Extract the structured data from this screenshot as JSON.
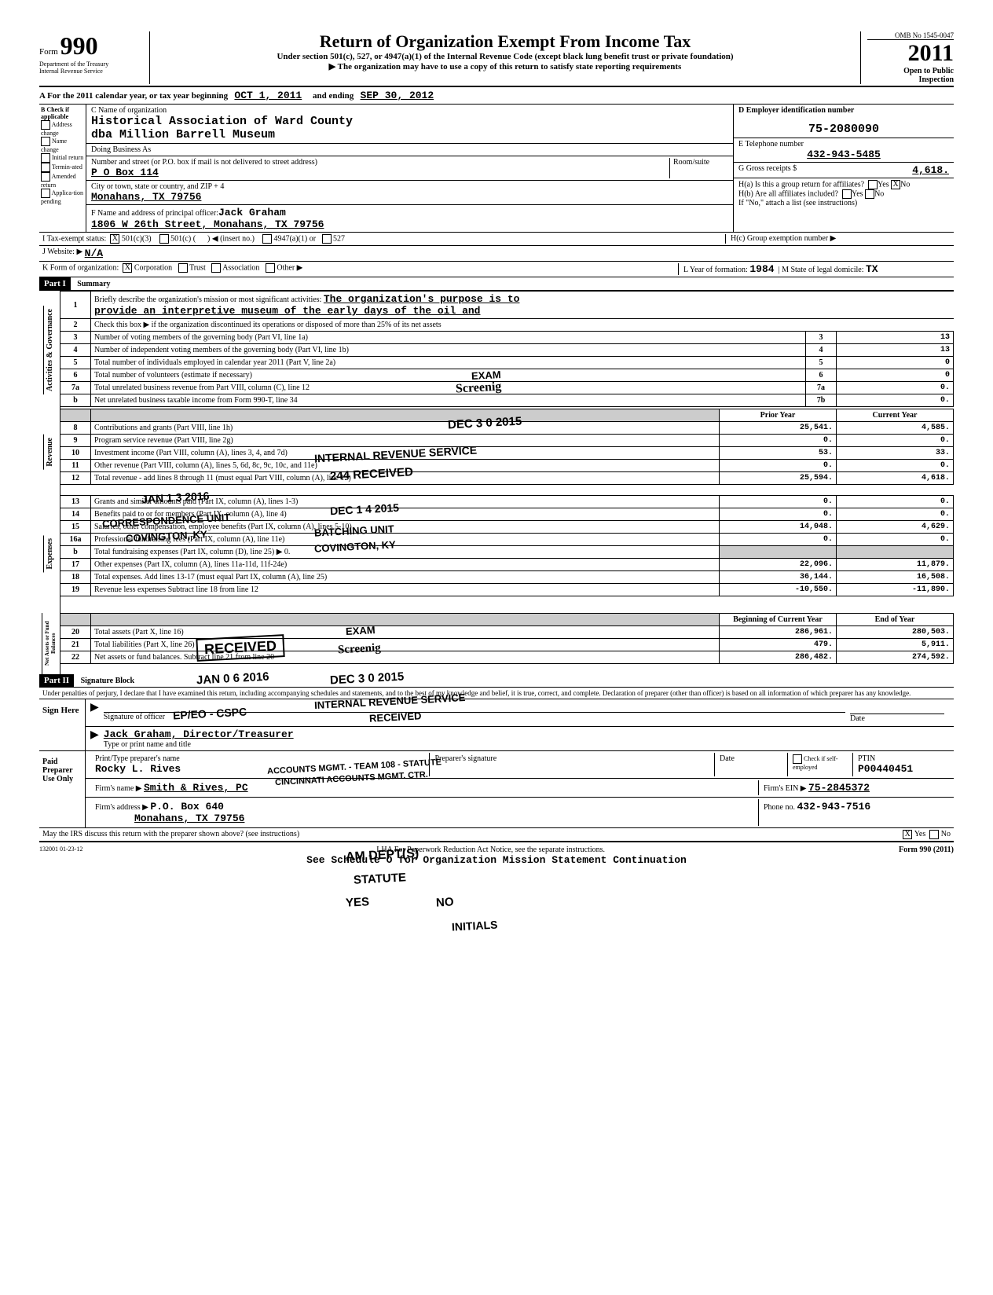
{
  "header": {
    "form_label": "Form",
    "form_number": "990",
    "dept1": "Department of the Treasury",
    "dept2": "Internal Revenue Service",
    "title": "Return of Organization Exempt From Income Tax",
    "subtitle": "Under section 501(c), 527, or 4947(a)(1) of the Internal Revenue Code (except black lung benefit trust or private foundation)",
    "note": "▶ The organization may have to use a copy of this return to satisfy state reporting requirements",
    "omb": "OMB No  1545-0047",
    "year": "2011",
    "open": "Open to Public Inspection"
  },
  "tax_year": {
    "prefix": "A  For the 2011 calendar year, or tax year beginning",
    "begin": "OCT 1, 2011",
    "mid": "and ending",
    "end": "SEP 30, 2012"
  },
  "section_b": {
    "header": "B  Check if applicable",
    "items": [
      "Address change",
      "Name change",
      "Initial return",
      "Termin-ated",
      "Amended return",
      "Applica-tion pending"
    ]
  },
  "section_c": {
    "label_name": "C Name of organization",
    "org_name": "Historical Association of Ward County",
    "dba": "dba Million Barrell Museum",
    "dba_label": "Doing Business As",
    "street_label": "Number and street (or P.O. box if mail is not delivered to street address)",
    "room_label": "Room/suite",
    "street": "P O Box 114",
    "city_label": "City or town, state or country, and ZIP + 4",
    "city": "Monahans, TX  79756",
    "officer_label": "F Name and address of principal officer:",
    "officer_name": "Jack Graham",
    "officer_addr": "1806 W 26th Street, Monahans, TX  79756"
  },
  "section_d": {
    "label": "D Employer identification number",
    "ein": "75-2080090",
    "phone_label": "E  Telephone number",
    "phone": "432-943-5485",
    "gross_label": "G  Gross receipts $",
    "gross": "4,618.",
    "h_a": "H(a) Is this a group return for affiliates?",
    "h_b": "H(b) Are all affiliates included?",
    "h_b_note": "If \"No,\" attach a list  (see instructions)",
    "h_c": "H(c) Group exemption number ▶",
    "yes": "Yes",
    "no": "No"
  },
  "tax_status": {
    "label": "I  Tax-exempt status:",
    "opt1": "501(c)(3)",
    "opt2": "501(c) (",
    "insert": "◀  (insert no.)",
    "opt3": "4947(a)(1) or",
    "opt4": "527"
  },
  "website": {
    "label": "J  Website: ▶",
    "value": "N/A"
  },
  "form_org": {
    "label": "K  Form of organization:",
    "corp": "Corporation",
    "trust": "Trust",
    "assoc": "Association",
    "other": "Other ▶",
    "year_label": "L Year of formation:",
    "year": "1984",
    "state_label": "M State of legal domicile:",
    "state": "TX"
  },
  "part1": {
    "header": "Part I",
    "title": "Summary",
    "line1_num": "1",
    "line1": "Briefly describe the organization's mission or most significant activities:",
    "line1_val": "The organization's purpose is to",
    "line1_val2": "provide an interpretive museum of the early days of the oil and",
    "line2_num": "2",
    "line2": "Check this box ▶         if the organization discontinued its operations or disposed of more than 25% of its net assets",
    "governance_label": "Activities & Governance",
    "rows_gov": [
      {
        "n": "3",
        "desc": "Number of voting members of the governing body (Part VI, line 1a)",
        "box": "3",
        "val": "13"
      },
      {
        "n": "4",
        "desc": "Number of independent voting members of the governing body (Part VI, line 1b)",
        "box": "4",
        "val": "13"
      },
      {
        "n": "5",
        "desc": "Total number of individuals employed in calendar year 2011 (Part V, line 2a)",
        "box": "5",
        "val": "0"
      },
      {
        "n": "6",
        "desc": "Total number of volunteers (estimate if necessary)",
        "box": "6",
        "val": "0"
      },
      {
        "n": "7a",
        "desc": "Total unrelated business revenue from Part VIII, column (C), line 12",
        "box": "7a",
        "val": "0."
      },
      {
        "n": "b",
        "desc": "Net unrelated business taxable income from Form 990-T, line 34",
        "box": "7b",
        "val": "0."
      }
    ],
    "prior_year": "Prior Year",
    "current_year": "Current Year",
    "revenue_label": "Revenue",
    "rows_rev": [
      {
        "n": "8",
        "desc": "Contributions and grants (Part VIII, line 1h)",
        "py": "25,541.",
        "cy": "4,585."
      },
      {
        "n": "9",
        "desc": "Program service revenue (Part VIII, line 2g)",
        "py": "0.",
        "cy": "0."
      },
      {
        "n": "10",
        "desc": "Investment income (Part VIII, column (A), lines 3, 4, and 7d)",
        "py": "53.",
        "cy": "33."
      },
      {
        "n": "11",
        "desc": "Other revenue (Part VIII, column (A), lines 5, 6d, 8c, 9c, 10c, and 11e)",
        "py": "0.",
        "cy": "0."
      },
      {
        "n": "12",
        "desc": "Total revenue - add lines 8 through 11 (must equal Part VIII, column (A), line 12)",
        "py": "25,594.",
        "cy": "4,618."
      }
    ],
    "expenses_label": "Expenses",
    "rows_exp": [
      {
        "n": "13",
        "desc": "Grants and similar amounts paid (Part IX, column (A), lines 1-3)",
        "py": "0.",
        "cy": "0."
      },
      {
        "n": "14",
        "desc": "Benefits paid to or for members (Part IX, column (A), line 4)",
        "py": "0.",
        "cy": "0."
      },
      {
        "n": "15",
        "desc": "Salaries, other compensation, employee benefits (Part IX, column (A), lines 5-10)",
        "py": "14,048.",
        "cy": "4,629."
      },
      {
        "n": "16a",
        "desc": "Professional fundraising fees (Part IX, column (A), line 11e)",
        "py": "0.",
        "cy": "0."
      },
      {
        "n": "b",
        "desc": "Total fundraising expenses (Part IX, column (D), line 25)    ▶                    0.",
        "py": "",
        "cy": ""
      },
      {
        "n": "17",
        "desc": "Other expenses (Part IX, column (A), lines 11a-11d, 11f-24e)",
        "py": "22,096.",
        "cy": "11,879."
      },
      {
        "n": "18",
        "desc": "Total expenses. Add lines 13-17 (must equal Part IX, column (A), line 25)",
        "py": "36,144.",
        "cy": "16,508."
      },
      {
        "n": "19",
        "desc": "Revenue less expenses  Subtract line 18 from line 12",
        "py": "-10,550.",
        "cy": "-11,890."
      }
    ],
    "netassets_label": "Net Assets or Fund Balances",
    "boy": "Beginning of Current Year",
    "eoy": "End of Year",
    "rows_net": [
      {
        "n": "20",
        "desc": "Total assets (Part X, line 16)",
        "py": "286,961.",
        "cy": "280,503."
      },
      {
        "n": "21",
        "desc": "Total liabilities (Part X, line 26)",
        "py": "479.",
        "cy": "5,911."
      },
      {
        "n": "22",
        "desc": "Net assets or fund balances. Subtract line 21 from line 20",
        "py": "286,482.",
        "cy": "274,592."
      }
    ]
  },
  "part2": {
    "header": "Part II",
    "title": "Signature Block",
    "perjury": "Under penalties of perjury, I declare that I have examined this return, including accompanying schedules and statements, and to the best of my knowledge and belief, it is true, correct, and complete. Declaration of preparer (other than officer) is based on all information of which preparer has any knowledge.",
    "sign_label": "Sign Here",
    "sig_officer": "Signature of officer",
    "date": "Date",
    "officer_typed": "Jack Graham, Director/Treasurer",
    "type_name": "Type or print name and title",
    "paid_label": "Paid Preparer Use Only",
    "prep_name_label": "Print/Type preparer's name",
    "prep_name": "Rocky L. Rives",
    "prep_sig_label": "Preparer's signature",
    "check_self": "Check if self-employed",
    "ptin_label": "PTIN",
    "ptin": "P00440451",
    "firm_name_label": "Firm's name    ▶",
    "firm_name": "Smith & Rives, PC",
    "firm_ein_label": "Firm's EIN ▶",
    "firm_ein": "75-2845372",
    "firm_addr_label": "Firm's address ▶",
    "firm_addr1": "P.O. Box 640",
    "firm_addr2": "Monahans, TX 79756",
    "phone_label": "Phone no.",
    "phone": "432-943-7516",
    "discuss": "May the IRS discuss this return with the preparer shown above? (see instructions)",
    "yes": "Yes",
    "no": "No"
  },
  "footer": {
    "code": "132001  01-23-12",
    "lha": "LHA  For Paperwork Reduction Act Notice, see the separate instructions.",
    "sched": "See Schedule O for Organization Mission Statement Continuation",
    "form": "Form 990 (2011)"
  },
  "stamps": {
    "s1a": "EXAM",
    "s1b": "Screenig",
    "s2": "DEC 3 0 2015",
    "s3": "INTERNAL REVENUE SERVICE",
    "s4": "244 RECEIVED",
    "s5": "JAN 1 3 2016",
    "s6": "CORRESPONDENCE UNIT",
    "s7": "COVINGTON, KY",
    "s8": "DEC 1 4 2015",
    "s9": "BATCHING UNIT",
    "s10": "COVINGTON, KY",
    "s11": "RECEIVED",
    "s12": "JAN 0 6 2016",
    "s13": "DEC 3 0 2015",
    "s14": "EXAM",
    "s15": "Screenig",
    "s16": "INTERNAL REVENUE SERVICE",
    "s17": "RECEIVED",
    "s18": "EP/EO - CSPC",
    "s19": "ACCOUNTS MGMT. - TEAM 108 - STATUTE",
    "s20": "CINCINNATI ACCOUNTS MGMT. CTR.",
    "s21": "AM DEPT(S)",
    "s22": "STATUTE",
    "s23": "YES",
    "s24": "NO",
    "s25": "INITIALS"
  }
}
